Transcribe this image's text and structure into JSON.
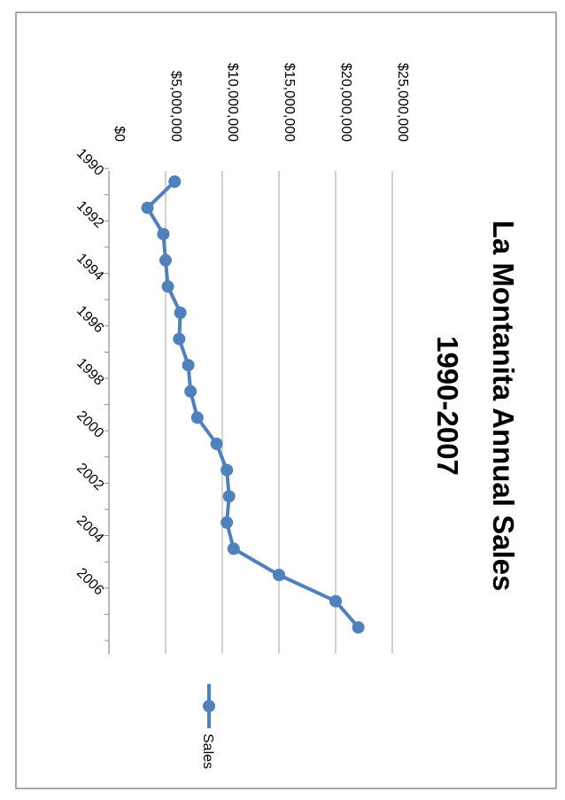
{
  "chart_data": {
    "type": "line",
    "title_lines": [
      "La Montanita Annual Sales",
      "1990-2007"
    ],
    "xlabel": "",
    "ylabel": "",
    "x": [
      1990,
      1991,
      1992,
      1993,
      1994,
      1995,
      1996,
      1997,
      1998,
      1999,
      2000,
      2001,
      2002,
      2003,
      2004,
      2005,
      2006,
      2007
    ],
    "x_tick_labels": [
      "1990",
      "1992",
      "1994",
      "1996",
      "1998",
      "2000",
      "2002",
      "2004",
      "2006"
    ],
    "y_tick_labels": [
      "$0",
      "$5,000,000",
      "$10,000,000",
      "$15,000,000",
      "$20,000,000",
      "$25,000,000"
    ],
    "ylim": [
      0,
      25000000
    ],
    "y_step": 5000000,
    "grid": true,
    "orientation": "rotated 90° clockwise",
    "legend_position": "bottom",
    "series": [
      {
        "name": "Sales",
        "color": "#4f81bd",
        "values": [
          5800000,
          3400000,
          4800000,
          5000000,
          5200000,
          6300000,
          6200000,
          7000000,
          7200000,
          7800000,
          9500000,
          10400000,
          10600000,
          10400000,
          11000000,
          15000000,
          20000000,
          22000000
        ]
      }
    ]
  }
}
